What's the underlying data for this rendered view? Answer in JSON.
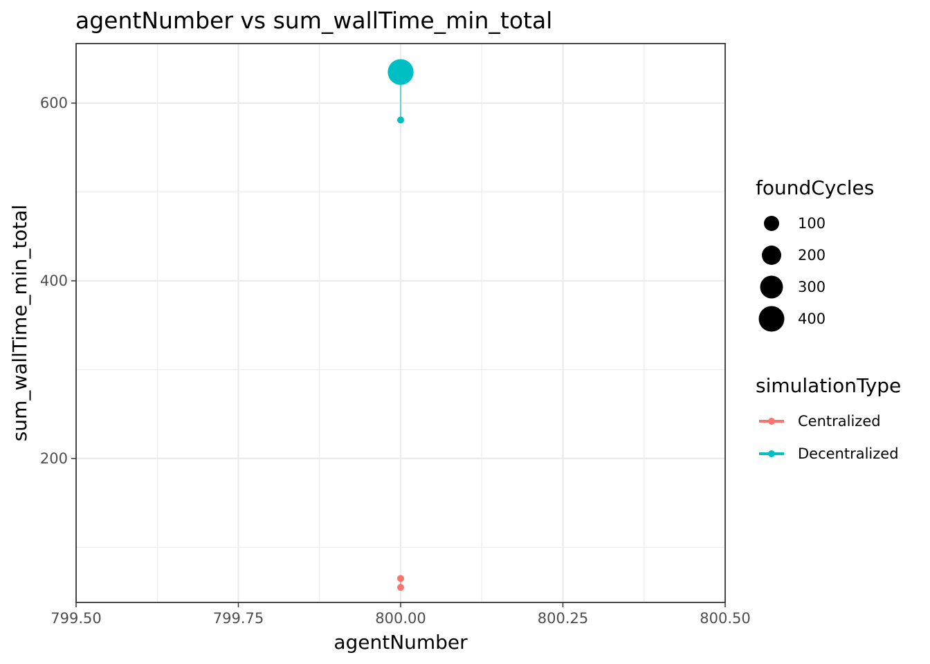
{
  "chart_data": {
    "type": "scatter",
    "title": "agentNumber  vs  sum_wallTime_min_total",
    "xlabel": "agentNumber",
    "ylabel": "sum_wallTime_min_total",
    "xlim": [
      799.5,
      800.5
    ],
    "ylim": [
      38,
      667
    ],
    "x_ticks": [
      799.5,
      799.75,
      800.0,
      800.25,
      800.5
    ],
    "x_tick_labels": [
      "799.50",
      "799.75",
      "800.00",
      "800.25",
      "800.50"
    ],
    "y_ticks": [
      200,
      400,
      600
    ],
    "y_tick_labels": [
      "200",
      "400",
      "600"
    ],
    "grid": true,
    "legend_placement": "right",
    "size_legend": {
      "title": "foundCycles",
      "entries": [
        {
          "label": "100",
          "value": 100
        },
        {
          "label": "200",
          "value": 200
        },
        {
          "label": "300",
          "value": 300
        },
        {
          "label": "400",
          "value": 400
        }
      ]
    },
    "color_legend": {
      "title": "simulationType",
      "entries": [
        {
          "label": "Centralized",
          "color": "#F8766D"
        },
        {
          "label": "Decentralized",
          "color": "#00BFC4"
        }
      ]
    },
    "series": [
      {
        "name": "Centralized",
        "color": "#F8766D",
        "points": [
          {
            "x": 800.0,
            "y": 65,
            "size": 1
          },
          {
            "x": 800.0,
            "y": 55,
            "size": 1
          }
        ]
      },
      {
        "name": "Decentralized",
        "color": "#00BFC4",
        "points": [
          {
            "x": 800.0,
            "y": 581,
            "size": 1
          },
          {
            "x": 800.0,
            "y": 635,
            "size": 430
          }
        ]
      }
    ]
  }
}
